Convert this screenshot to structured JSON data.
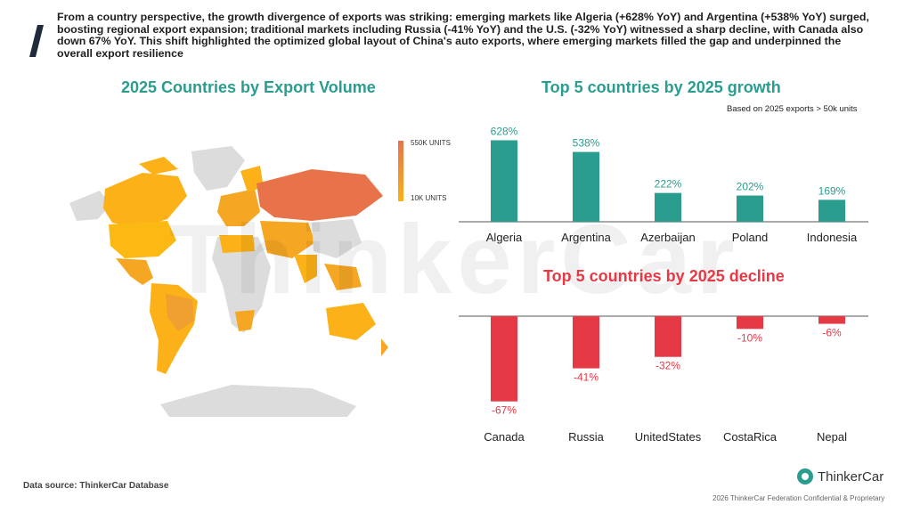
{
  "header": {
    "headline": "From a country perspective, the growth divergence of exports was striking: emerging markets like Algeria (+628% YoY) and Argentina (+538% YoY) surged, boosting regional export expansion; traditional markets including Russia (-41% YoY) and the U.S. (-32% YoY) witnessed a sharp decline, with Canada also down 67% YoY. This shift highlighted the optimized global layout of China's auto exports, where emerging markets filled the gap and underpinned the overall export resilience"
  },
  "map": {
    "title": "2025 Countries by Export Volume",
    "legend_max": "550K UNITS",
    "legend_min": "10K UNITS",
    "colors": {
      "high": "#e8734a",
      "low": "#fbb117",
      "none": "#dcdcdc"
    }
  },
  "growth_note": "Based on 2025 exports > 50k units",
  "watermark": "ThinkerCar",
  "footer": {
    "source": "Data source: ThinkerCar Database",
    "brand": "ThinkerCar",
    "copyright": "2026 ThinkerCar Federation Confidential & Proprietary"
  },
  "chart_data": [
    {
      "type": "bar",
      "title": "Top 5 countries by 2025 growth",
      "categories": [
        "Algeria",
        "Argentina",
        "Azerbaijan",
        "Poland",
        "Indonesia"
      ],
      "values": [
        628,
        538,
        222,
        202,
        169
      ],
      "value_labels": [
        "628%",
        "538%",
        "222%",
        "202%",
        "169%"
      ],
      "color": "#2a9d8f",
      "ylim": [
        0,
        700
      ]
    },
    {
      "type": "bar",
      "title": "Top 5 countries by 2025 decline",
      "categories": [
        "Canada",
        "Russia",
        "UnitedStates",
        "CostaRica",
        "Nepal"
      ],
      "values": [
        -67,
        -41,
        -32,
        -10,
        -6
      ],
      "value_labels": [
        "-67%",
        "-41%",
        "-32%",
        "-10%",
        "-6%"
      ],
      "color": "#e63946",
      "ylim": [
        -70,
        0
      ]
    }
  ]
}
